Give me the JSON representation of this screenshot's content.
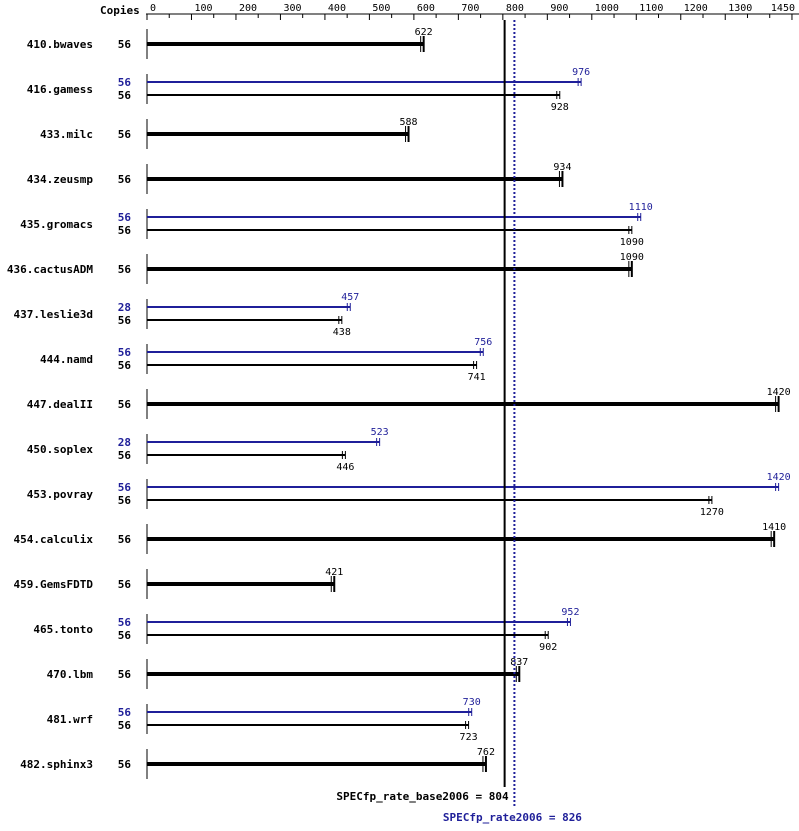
{
  "chart_data": {
    "type": "bar",
    "xlabel": "",
    "ylabel": "",
    "copies_header": "Copies",
    "xlim": [
      0,
      1450
    ],
    "ticks": [
      0,
      100,
      200,
      300,
      400,
      500,
      600,
      700,
      800,
      900,
      1000,
      1100,
      1200,
      1300,
      1450
    ],
    "benchmarks": [
      {
        "name": "410.bwaves",
        "base_copies": 56,
        "base": 622,
        "peak_copies": null,
        "peak": null
      },
      {
        "name": "416.gamess",
        "base_copies": 56,
        "base": 928,
        "peak_copies": 56,
        "peak": 976
      },
      {
        "name": "433.milc",
        "base_copies": 56,
        "base": 588,
        "peak_copies": null,
        "peak": null
      },
      {
        "name": "434.zeusmp",
        "base_copies": 56,
        "base": 934,
        "peak_copies": null,
        "peak": null
      },
      {
        "name": "435.gromacs",
        "base_copies": 56,
        "base": 1090,
        "peak_copies": 56,
        "peak": 1110
      },
      {
        "name": "436.cactusADM",
        "base_copies": 56,
        "base": 1090,
        "peak_copies": null,
        "peak": null
      },
      {
        "name": "437.leslie3d",
        "base_copies": 56,
        "base": 438,
        "peak_copies": 28,
        "peak": 457
      },
      {
        "name": "444.namd",
        "base_copies": 56,
        "base": 741,
        "peak_copies": 56,
        "peak": 756
      },
      {
        "name": "447.dealII",
        "base_copies": 56,
        "base": 1420,
        "peak_copies": null,
        "peak": null
      },
      {
        "name": "450.soplex",
        "base_copies": 56,
        "base": 446,
        "peak_copies": 28,
        "peak": 523
      },
      {
        "name": "453.povray",
        "base_copies": 56,
        "base": 1270,
        "peak_copies": 56,
        "peak": 1420
      },
      {
        "name": "454.calculix",
        "base_copies": 56,
        "base": 1410,
        "peak_copies": null,
        "peak": null
      },
      {
        "name": "459.GemsFDTD",
        "base_copies": 56,
        "base": 421,
        "peak_copies": null,
        "peak": null
      },
      {
        "name": "465.tonto",
        "base_copies": 56,
        "base": 902,
        "peak_copies": 56,
        "peak": 952
      },
      {
        "name": "470.lbm",
        "base_copies": 56,
        "base": 837,
        "peak_copies": null,
        "peak": null
      },
      {
        "name": "481.wrf",
        "base_copies": 56,
        "base": 723,
        "peak_copies": 56,
        "peak": 730
      },
      {
        "name": "482.sphinx3",
        "base_copies": 56,
        "base": 762,
        "peak_copies": null,
        "peak": null
      }
    ],
    "reference_lines": {
      "base": {
        "label": "SPECfp_rate_base2006 = 804",
        "value": 804
      },
      "peak": {
        "label": "SPECfp_rate2006 = 826",
        "value": 826
      }
    },
    "colors": {
      "base": "#000000",
      "peak": "#1f1f99"
    }
  }
}
